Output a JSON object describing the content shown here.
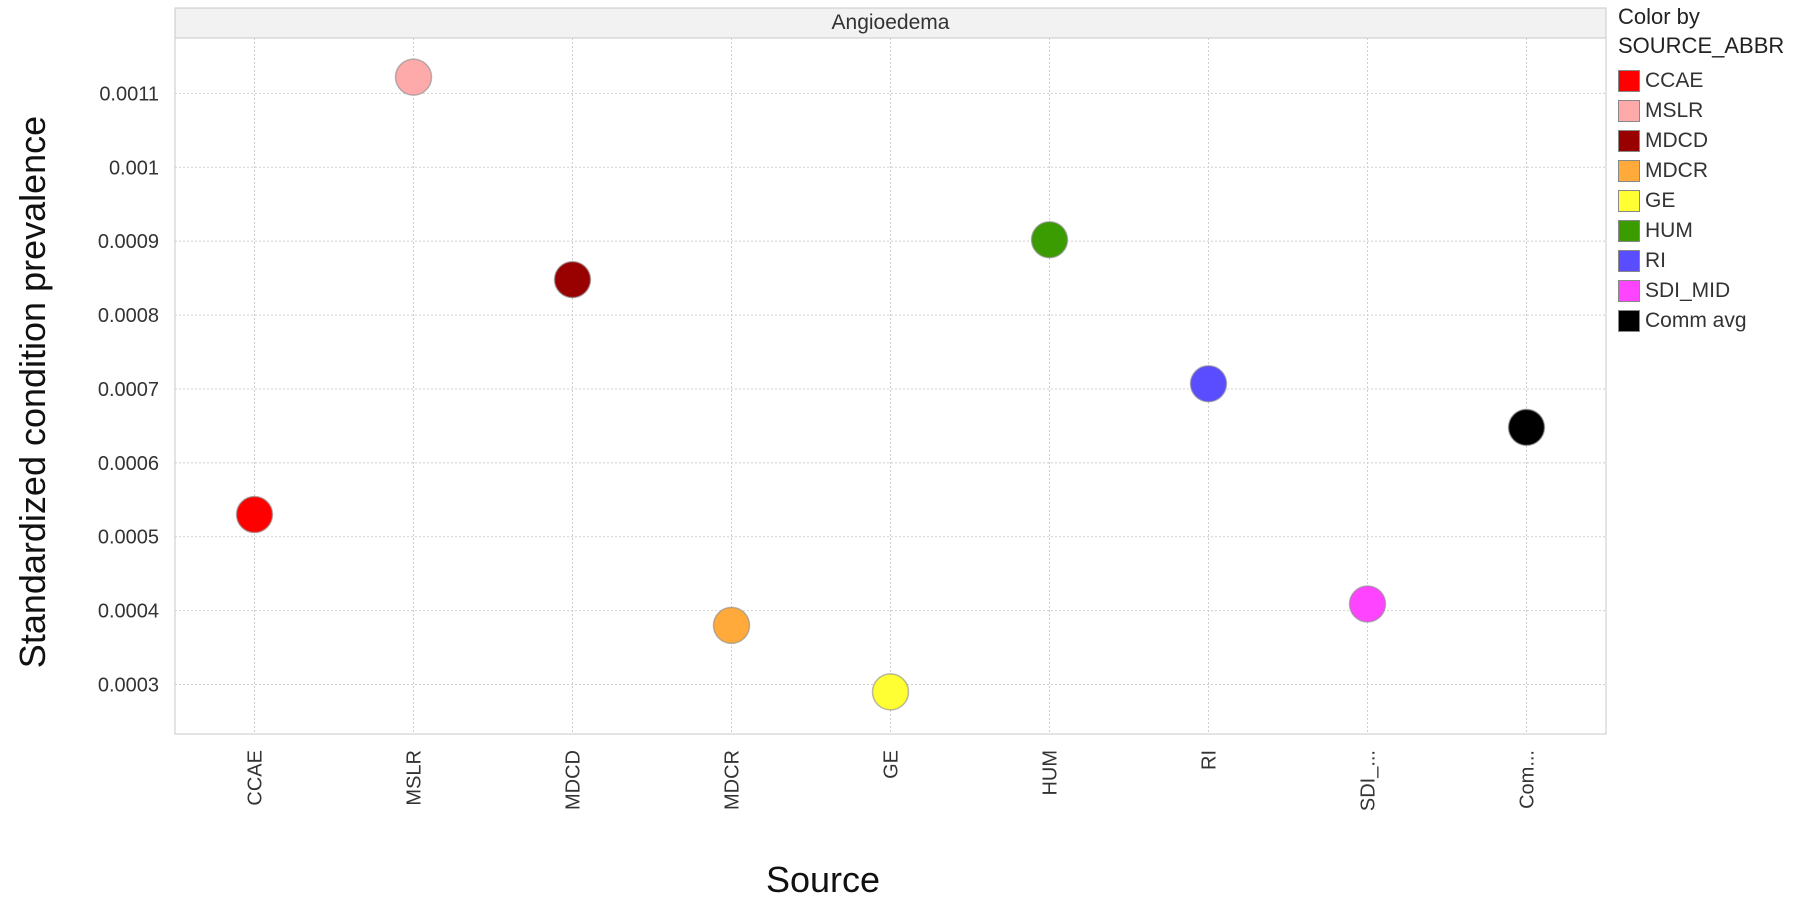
{
  "chart_data": {
    "type": "scatter",
    "panel_title": "Angioedema",
    "xlabel": "Source",
    "ylabel": "Standardized condition prevalence",
    "categories": [
      "CCAE",
      "MSLR",
      "MDCD",
      "MDCR",
      "GE",
      "HUM",
      "RI",
      "SDI_MID",
      "Comm avg"
    ],
    "category_tick_labels": [
      "CCAE",
      "MSLR",
      "MDCD",
      "MDCR",
      "GE",
      "HUM",
      "RI",
      "SDI_...",
      "Com..."
    ],
    "values": [
      0.00053,
      0.001122,
      0.000848,
      0.00038,
      0.00029,
      0.000902,
      0.000707,
      0.000409,
      0.000648
    ],
    "colors": [
      "#ff0000",
      "#ffaaaa",
      "#990000",
      "#ffaa3b",
      "#ffff33",
      "#3a9c00",
      "#5a4cff",
      "#ff44ff",
      "#000000"
    ],
    "ylim": [
      0.000233,
      0.001175
    ],
    "yticks": [
      0.0003,
      0.0004,
      0.0005,
      0.0006,
      0.0007,
      0.0008,
      0.0009,
      0.001,
      0.0011
    ],
    "ytick_labels": [
      "0.0003",
      "0.0004",
      "0.0005",
      "0.0006",
      "0.0007",
      "0.0008",
      "0.0009",
      "0.001",
      "0.0011"
    ],
    "grid": true,
    "legend": {
      "placement": "right",
      "title_line1": "Color by",
      "title_line2": "SOURCE_ABBR",
      "entries": [
        {
          "label": "CCAE",
          "color": "#ff0000"
        },
        {
          "label": "MSLR",
          "color": "#ffaaaa"
        },
        {
          "label": "MDCD",
          "color": "#990000"
        },
        {
          "label": "MDCR",
          "color": "#ffaa3b"
        },
        {
          "label": "GE",
          "color": "#ffff33"
        },
        {
          "label": "HUM",
          "color": "#3a9c00"
        },
        {
          "label": "RI",
          "color": "#5a4cff"
        },
        {
          "label": "SDI_MID",
          "color": "#ff44ff"
        },
        {
          "label": "Comm avg",
          "color": "#000000"
        }
      ]
    }
  }
}
